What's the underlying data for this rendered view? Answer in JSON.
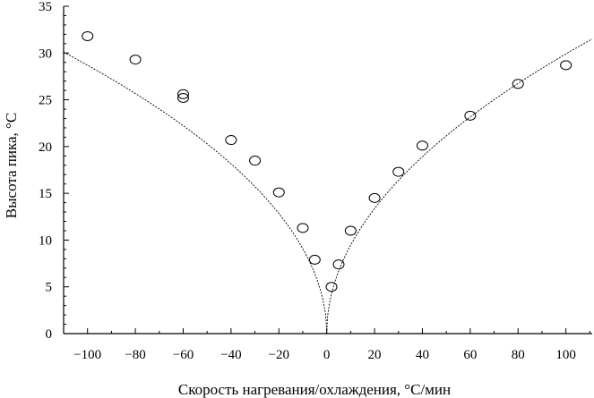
{
  "chart_data": {
    "type": "scatter",
    "title": "",
    "xlabel": "Скорость нагревания/охлаждения, °C/мин",
    "ylabel": "Высота пика, °C",
    "xlim": [
      -110,
      111
    ],
    "ylim": [
      0,
      35
    ],
    "xticks": [
      -100,
      -80,
      -60,
      -40,
      -20,
      0,
      20,
      40,
      60,
      80,
      100
    ],
    "yticks": [
      0,
      5,
      10,
      15,
      20,
      25,
      30,
      35
    ],
    "grid": false,
    "series": [
      {
        "kind": "points",
        "marker": "open-circle",
        "x": [
          -100,
          -80,
          -60,
          -60,
          -40,
          -30,
          -20,
          -10,
          -5,
          2,
          5,
          10,
          20,
          30,
          40,
          60,
          80,
          100
        ],
        "y": [
          31.8,
          29.3,
          25.6,
          25.2,
          20.7,
          18.5,
          15.1,
          11.3,
          7.9,
          5.0,
          7.4,
          11.0,
          14.5,
          17.3,
          20.1,
          23.3,
          26.7,
          28.7
        ]
      },
      {
        "kind": "fit-curve",
        "model": "y = a * sqrt(|x|)",
        "a_negative": 2.87,
        "a_positive": 2.99,
        "x_range": [
          -110,
          111
        ]
      }
    ]
  }
}
